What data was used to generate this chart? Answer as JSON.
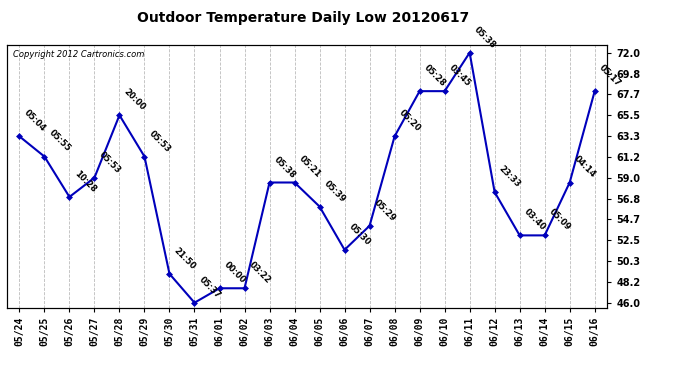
{
  "title": "Outdoor Temperature Daily Low 20120617",
  "copyright": "Copyright 2012 Cartronics.com",
  "x_labels": [
    "05/24",
    "05/25",
    "05/26",
    "05/27",
    "05/28",
    "05/29",
    "05/30",
    "05/31",
    "06/01",
    "06/02",
    "06/03",
    "06/04",
    "06/05",
    "06/06",
    "06/07",
    "06/08",
    "06/09",
    "06/10",
    "06/11",
    "06/12",
    "06/13",
    "06/14",
    "06/15",
    "06/16"
  ],
  "y_values": [
    63.3,
    61.2,
    57.0,
    59.0,
    65.5,
    61.2,
    49.0,
    46.0,
    47.5,
    47.5,
    58.5,
    58.5,
    56.0,
    51.5,
    54.0,
    63.3,
    68.0,
    68.0,
    72.0,
    57.5,
    53.0,
    53.0,
    58.5,
    68.0
  ],
  "time_labels": [
    "05:04",
    "05:55",
    "10:28",
    "05:53",
    "20:00",
    "05:53",
    "21:50",
    "05:37",
    "00:00",
    "03:22",
    "05:38",
    "05:21",
    "05:39",
    "05:30",
    "05:29",
    "05:20",
    "05:28",
    "03:45",
    "05:38",
    "23:33",
    "03:40",
    "05:09",
    "04:14",
    "05:17"
  ],
  "y_ticks": [
    46.0,
    48.2,
    50.3,
    52.5,
    54.7,
    56.8,
    59.0,
    61.2,
    63.3,
    65.5,
    67.7,
    69.8,
    72.0
  ],
  "ylim": [
    45.5,
    72.8
  ],
  "line_color": "#0000bb",
  "marker_color": "#0000bb",
  "bg_color": "#ffffff",
  "grid_color": "#bbbbbb",
  "title_fontsize": 10,
  "label_fontsize": 6,
  "tick_fontsize": 7,
  "copyright_fontsize": 6
}
